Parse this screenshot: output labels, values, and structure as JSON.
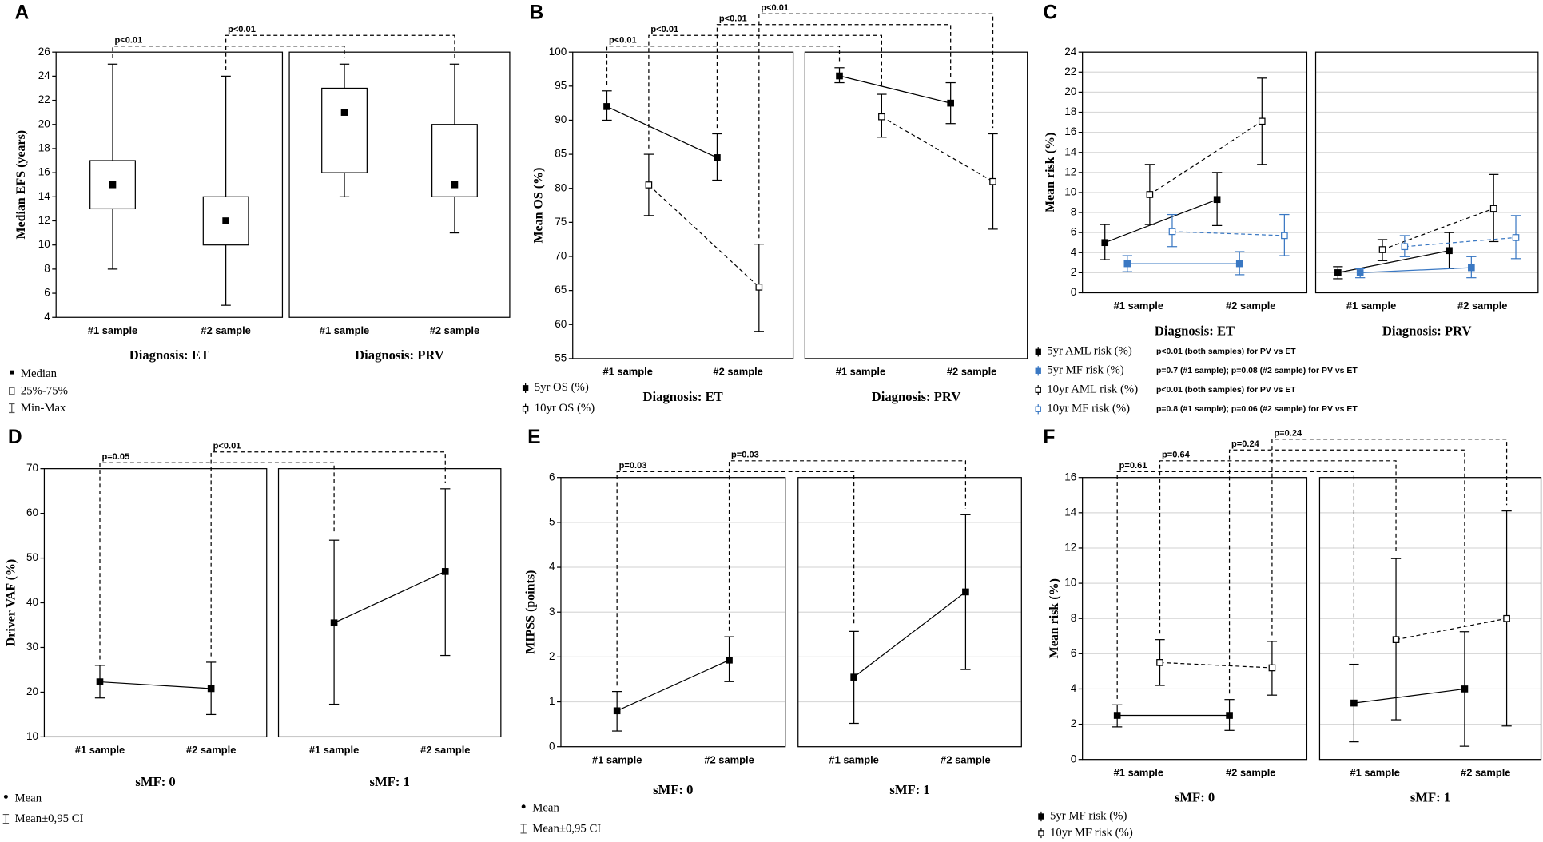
{
  "chart_data": [
    {
      "type": "box",
      "label": "A",
      "ylabel": "Median EFS (years)",
      "ylim": [
        4,
        26
      ],
      "yticks": [
        4,
        6,
        8,
        10,
        12,
        14,
        16,
        18,
        20,
        22,
        24,
        26
      ],
      "grid": false,
      "categories": [
        "#1 sample",
        "#2 sample"
      ],
      "facets": [
        "Diagnosis: ET",
        "Diagnosis: PRV"
      ],
      "median": [
        [
          15,
          12
        ],
        [
          21,
          15
        ]
      ],
      "q1": [
        [
          13,
          10
        ],
        [
          16,
          14
        ]
      ],
      "q3": [
        [
          17,
          14
        ],
        [
          23,
          20
        ]
      ],
      "min": [
        [
          8,
          5
        ],
        [
          14,
          11
        ]
      ],
      "max": [
        [
          25,
          24
        ],
        [
          25,
          25
        ]
      ],
      "legend": [
        "Median",
        "25%-75%",
        "Min-Max"
      ],
      "annotations": [
        "p<0.01",
        "p<0.01"
      ]
    },
    {
      "type": "line",
      "label": "B",
      "ylabel": "Mean OS (%)",
      "ylim": [
        55,
        100
      ],
      "yticks": [
        55,
        60,
        65,
        70,
        75,
        80,
        85,
        90,
        95,
        100
      ],
      "grid": false,
      "categories": [
        "#1 sample",
        "#2 sample"
      ],
      "facets": [
        "Diagnosis: ET",
        "Diagnosis: PRV"
      ],
      "series": [
        {
          "name": "5yr OS (%)",
          "color": "#000000",
          "line": "solid",
          "marker": "filled",
          "values": [
            [
              92,
              84.5
            ],
            [
              96.5,
              92.5
            ]
          ],
          "low": [
            [
              90,
              81.2
            ],
            [
              95.5,
              89.5
            ]
          ],
          "high": [
            [
              94.3,
              88
            ],
            [
              97.7,
              95.5
            ]
          ]
        },
        {
          "name": "10yr OS (%)",
          "color": "#000000",
          "line": "dashed",
          "marker": "open",
          "values": [
            [
              80.5,
              65.5
            ],
            [
              90.5,
              81
            ]
          ],
          "low": [
            [
              76,
              59
            ],
            [
              87.5,
              74
            ]
          ],
          "high": [
            [
              85,
              71.8
            ],
            [
              93.8,
              88
            ]
          ]
        }
      ],
      "annotations": [
        "p<0.01",
        "p<0.01",
        "p<0.01",
        "p<0.01"
      ]
    },
    {
      "type": "line",
      "label": "C",
      "ylabel": "Mean risk (%)",
      "ylim": [
        0,
        24
      ],
      "yticks": [
        0,
        2,
        4,
        6,
        8,
        10,
        12,
        14,
        16,
        18,
        20,
        22,
        24
      ],
      "grid": true,
      "categories": [
        "#1 sample",
        "#2 sample"
      ],
      "facets": [
        "Diagnosis: ET",
        "Diagnosis: PRV"
      ],
      "series": [
        {
          "name": "5yr AML risk (%)",
          "color": "#000000",
          "line": "solid",
          "marker": "filled",
          "values": [
            [
              5,
              9.3
            ],
            [
              2,
              4.2
            ]
          ],
          "low": [
            [
              3.3,
              6.7
            ],
            [
              1.4,
              2.4
            ]
          ],
          "high": [
            [
              6.8,
              12
            ],
            [
              2.6,
              6
            ]
          ]
        },
        {
          "name": "5yr MF risk (%)",
          "color": "#3a78c3",
          "line": "solid",
          "marker": "filled",
          "values": [
            [
              2.9,
              2.9
            ],
            [
              2,
              2.5
            ]
          ],
          "low": [
            [
              2.1,
              1.8
            ],
            [
              1.5,
              1.5
            ]
          ],
          "high": [
            [
              3.7,
              4.1
            ],
            [
              2.4,
              3.6
            ]
          ]
        },
        {
          "name": "10yr AML risk (%)",
          "color": "#000000",
          "line": "dashed",
          "marker": "open",
          "values": [
            [
              9.8,
              17.1
            ],
            [
              4.3,
              8.4
            ]
          ],
          "low": [
            [
              6.8,
              12.8
            ],
            [
              3.2,
              5.1
            ]
          ],
          "high": [
            [
              12.8,
              21.4
            ],
            [
              5.3,
              11.8
            ]
          ]
        },
        {
          "name": "10yr MF risk (%)",
          "color": "#3a78c3",
          "line": "dashed",
          "marker": "open",
          "values": [
            [
              6.1,
              5.7
            ],
            [
              4.6,
              5.5
            ]
          ],
          "low": [
            [
              4.6,
              3.7
            ],
            [
              3.6,
              3.4
            ]
          ],
          "high": [
            [
              7.8,
              7.8
            ],
            [
              5.7,
              7.7
            ]
          ]
        }
      ],
      "notes": [
        "p<0.01 (both samples) for PV vs ET",
        "p=0.7 (#1 sample); p=0.08 (#2 sample) for PV vs ET",
        "p<0.01 (both samples) for PV vs ET",
        "p=0.8 (#1 sample); p=0.06 (#2 sample) for PV vs ET"
      ],
      "annotations": []
    },
    {
      "type": "line",
      "label": "D",
      "ylabel": "Driver VAF (%)",
      "ylim": [
        10,
        70
      ],
      "yticks": [
        10,
        20,
        30,
        40,
        50,
        60,
        70
      ],
      "grid": false,
      "categories": [
        "#1 sample",
        "#2 sample"
      ],
      "facets": [
        "sMF: 0",
        "sMF: 1"
      ],
      "series": [
        {
          "color": "#000000",
          "line": "solid",
          "marker": "filled",
          "values": [
            [
              22.3,
              20.8
            ],
            [
              35.5,
              47
            ]
          ],
          "low": [
            [
              18.7,
              15
            ],
            [
              17.3,
              28.2
            ]
          ],
          "high": [
            [
              26,
              26.7
            ],
            [
              54,
              65.5
            ]
          ]
        }
      ],
      "legend": [
        "Mean",
        "Mean±0,95 CI"
      ],
      "annotations": [
        "p=0.05",
        "p<0.01"
      ]
    },
    {
      "type": "line",
      "label": "E",
      "ylabel": "MIPSS (points)",
      "ylim": [
        0,
        6
      ],
      "yticks": [
        0,
        1,
        2,
        3,
        4,
        5,
        6
      ],
      "grid": true,
      "categories": [
        "#1 sample",
        "#2 sample"
      ],
      "facets": [
        "sMF: 0",
        "sMF: 1"
      ],
      "series": [
        {
          "color": "#000000",
          "line": "solid",
          "marker": "filled",
          "values": [
            [
              0.8,
              1.93
            ],
            [
              1.55,
              3.45
            ]
          ],
          "low": [
            [
              0.35,
              1.45
            ],
            [
              0.52,
              1.72
            ]
          ],
          "high": [
            [
              1.23,
              2.45
            ],
            [
              2.57,
              5.17
            ]
          ]
        }
      ],
      "legend": [
        "Mean",
        "Mean±0,95 CI"
      ],
      "annotations": [
        "p=0.03",
        "p=0.03"
      ]
    },
    {
      "type": "line",
      "label": "F",
      "ylabel": "Mean risk (%)",
      "ylim": [
        0,
        16
      ],
      "yticks": [
        0,
        2,
        4,
        6,
        8,
        10,
        12,
        14,
        16
      ],
      "grid": true,
      "categories": [
        "#1 sample",
        "#2 sample"
      ],
      "facets": [
        "sMF: 0",
        "sMF: 1"
      ],
      "series": [
        {
          "name": "5yr MF risk (%)",
          "color": "#000000",
          "line": "solid",
          "marker": "filled",
          "values": [
            [
              2.5,
              2.5
            ],
            [
              3.2,
              4
            ]
          ],
          "low": [
            [
              1.85,
              1.65
            ],
            [
              1,
              0.75
            ]
          ],
          "high": [
            [
              3.1,
              3.4
            ],
            [
              5.4,
              7.25
            ]
          ]
        },
        {
          "name": "10yr MF risk (%)",
          "color": "#000000",
          "line": "dashed",
          "marker": "open",
          "values": [
            [
              5.5,
              5.2
            ],
            [
              6.8,
              8
            ]
          ],
          "low": [
            [
              4.2,
              3.65
            ],
            [
              2.25,
              1.9
            ]
          ],
          "high": [
            [
              6.8,
              6.7
            ],
            [
              11.4,
              14.1
            ]
          ]
        }
      ],
      "annotations": [
        "p=0.61",
        "p=0.64",
        "p=0.24",
        "p=0.24"
      ]
    }
  ]
}
